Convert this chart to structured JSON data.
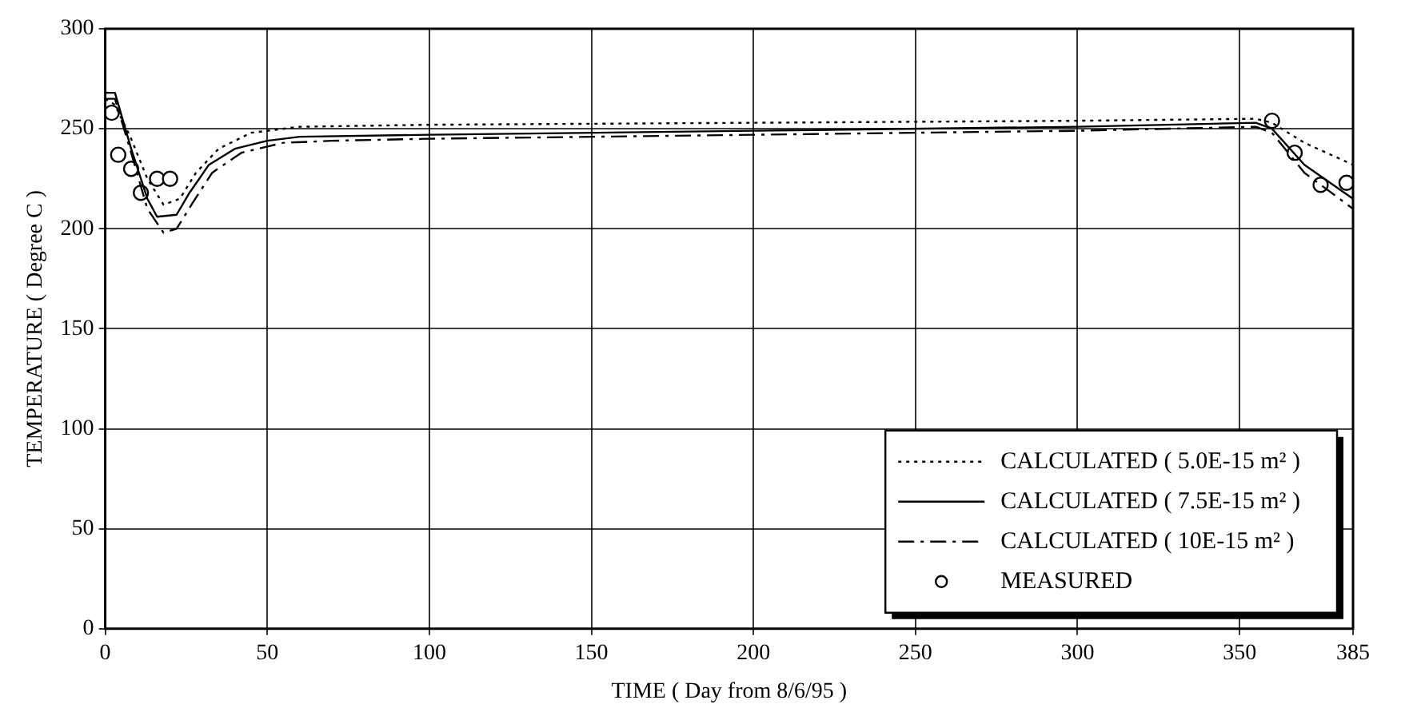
{
  "chart_data": {
    "type": "line",
    "xlabel": "TIME ( Day from 8/6/95 )",
    "ylabel": "TEMPERATURE ( Degree C )",
    "xlim": [
      0,
      385
    ],
    "xticks": [
      0,
      50,
      100,
      150,
      200,
      250,
      300,
      350,
      385
    ],
    "ylim": [
      0,
      300
    ],
    "yticks": [
      0,
      50,
      100,
      150,
      200,
      250,
      300
    ],
    "grid": true,
    "legend": "bottom right",
    "series": [
      {
        "name": "CALCULATED ( 5.0E-15 m² )",
        "color": "#000000",
        "line_style": "dotted",
        "marker": "none",
        "x": [
          0,
          3,
          8,
          13,
          18,
          23,
          28,
          35,
          45,
          60,
          100,
          200,
          300,
          355,
          360,
          370,
          385
        ],
        "values": [
          265,
          262,
          245,
          225,
          212,
          215,
          228,
          240,
          248,
          251,
          252,
          253,
          254,
          255,
          253,
          243,
          232
        ]
      },
      {
        "name": "CALCULATED ( 7.5E-15 m² )",
        "color": "#000000",
        "line_style": "solid",
        "marker": "none",
        "x": [
          0,
          3,
          8,
          13,
          16,
          22,
          26,
          32,
          40,
          50,
          60,
          100,
          200,
          300,
          355,
          360,
          370,
          385
        ],
        "values": [
          268,
          268,
          240,
          215,
          206,
          207,
          218,
          232,
          240,
          244,
          246,
          247,
          249,
          251,
          253,
          250,
          232,
          215
        ]
      },
      {
        "name": "CALCULATED ( 10E-15 m² )",
        "color": "#000000",
        "line_style": "dashed",
        "marker": "none",
        "x": [
          0,
          3,
          8,
          13,
          18,
          22,
          27,
          33,
          42,
          55,
          70,
          100,
          200,
          300,
          355,
          360,
          370,
          385
        ],
        "values": [
          265,
          265,
          238,
          210,
          198,
          200,
          213,
          228,
          238,
          243,
          244,
          245,
          247,
          249,
          251,
          248,
          228,
          210
        ]
      },
      {
        "name": "MEASURED",
        "type": "scatter",
        "color": "#000000",
        "marker": "circle",
        "x": [
          2,
          4,
          8,
          11,
          16,
          20,
          360,
          367,
          375,
          383
        ],
        "values": [
          258,
          237,
          230,
          218,
          225,
          225,
          254,
          238,
          222,
          223
        ]
      }
    ]
  }
}
